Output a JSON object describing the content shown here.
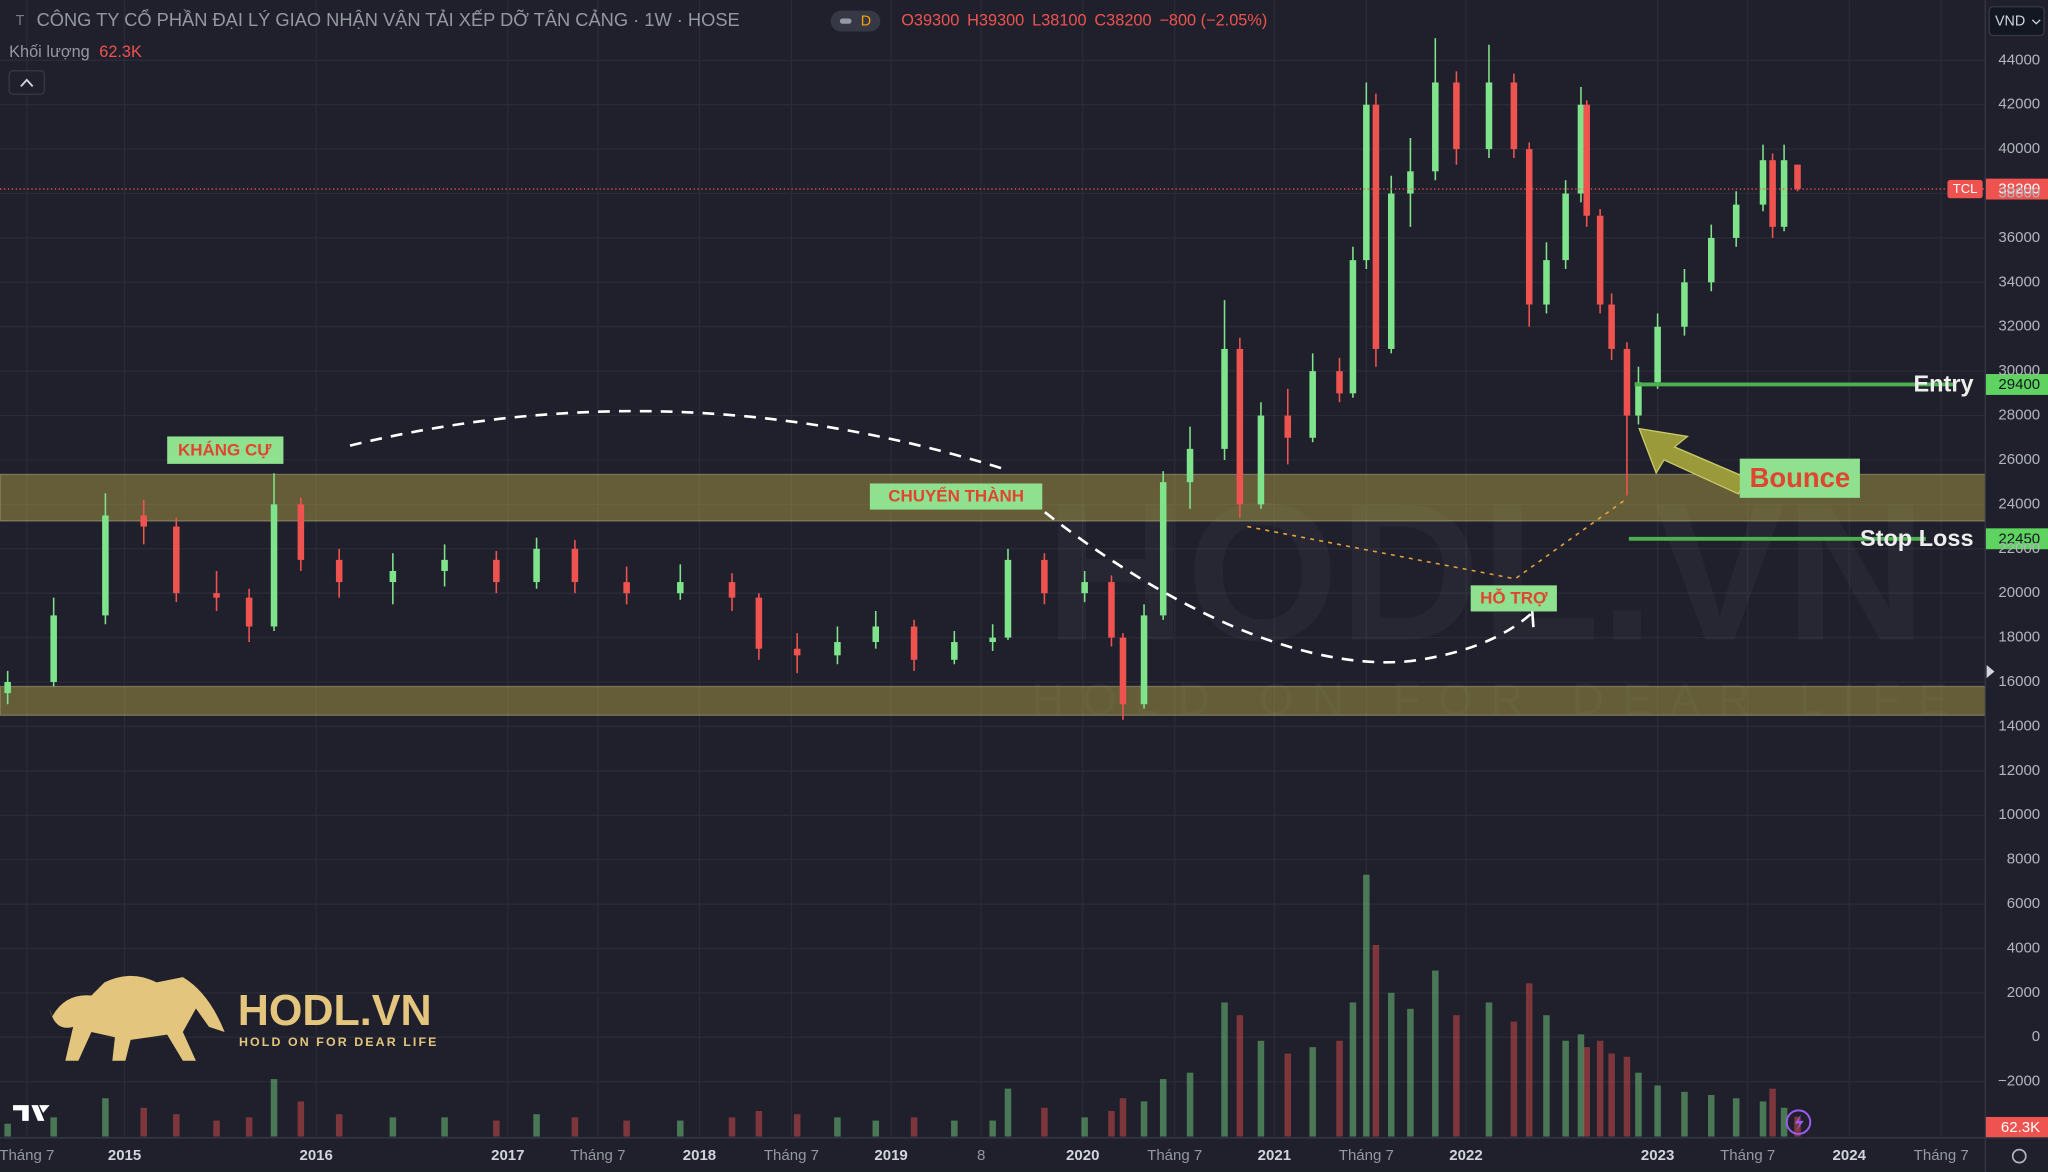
{
  "header": {
    "symbol_icon": "T",
    "title": "CÔNG TY CỔ PHẦN ĐẠI LÝ GIAO NHẬN VẬN TẢI XẾP DỠ TÂN CẢNG · 1W · HOSE",
    "badge": "D",
    "ohlc": [
      "O39300",
      "H39300",
      "L38100",
      "C38200",
      "−800 (−2.05%)"
    ],
    "volume_name": "Khối lượng",
    "volume_value": "62.3K",
    "currency": "VND"
  },
  "chart_data": {
    "type": "candlestick",
    "xlim": [
      2014.35,
      2024.71
    ],
    "ylim": [
      -4470,
      46706
    ],
    "vlim": [
      0,
      900
    ],
    "grid": true,
    "up_color": "#7ee38a",
    "down_color": "#ef5350",
    "xticks": [
      {
        "value": 2014.49,
        "label": "Tháng 7"
      },
      2015,
      2016,
      2017,
      {
        "value": 2017.47,
        "label": "Tháng 7"
      },
      2018,
      {
        "value": 2018.48,
        "label": "Tháng 7"
      },
      2019,
      {
        "value": 2019.47,
        "label": "8"
      },
      2020,
      {
        "value": 2020.48,
        "label": "Tháng 7"
      },
      2021,
      {
        "value": 2021.48,
        "label": "Tháng 7"
      },
      2022,
      2023,
      {
        "value": 2023.47,
        "label": "Tháng 7"
      },
      2024,
      {
        "value": 2024.48,
        "label": "Tháng 7"
      }
    ],
    "yticks": [
      {
        "value": -2000,
        "label": "−2000"
      },
      0,
      2000,
      4000,
      6000,
      8000,
      10000,
      12000,
      14000,
      16000,
      18000,
      20000,
      22000,
      24000,
      26000,
      28000,
      30000,
      32000,
      34000,
      36000,
      38000,
      40000,
      42000,
      44000
    ],
    "candles": [
      {
        "x": 2014.39,
        "open": 15500,
        "high": 16500,
        "low": 15000,
        "close": 16000,
        "volume": 40
      },
      {
        "x": 2014.63,
        "open": 16000,
        "high": 19800,
        "low": 15800,
        "close": 19000,
        "volume": 60
      },
      {
        "x": 2014.9,
        "open": 19000,
        "high": 24500,
        "low": 18600,
        "close": 23500,
        "volume": 120
      },
      {
        "x": 2015.1,
        "open": 23500,
        "high": 24200,
        "low": 22200,
        "close": 23000,
        "volume": 90
      },
      {
        "x": 2015.27,
        "open": 23000,
        "high": 23400,
        "low": 19600,
        "close": 20000,
        "volume": 70
      },
      {
        "x": 2015.48,
        "open": 20000,
        "high": 21000,
        "low": 19200,
        "close": 19800,
        "volume": 50
      },
      {
        "x": 2015.65,
        "open": 19800,
        "high": 20200,
        "low": 17800,
        "close": 18500,
        "volume": 60
      },
      {
        "x": 2015.78,
        "open": 18500,
        "high": 25400,
        "low": 18300,
        "close": 24000,
        "volume": 180
      },
      {
        "x": 2015.92,
        "open": 24000,
        "high": 24300,
        "low": 21000,
        "close": 21500,
        "volume": 110
      },
      {
        "x": 2016.12,
        "open": 21500,
        "high": 22000,
        "low": 19800,
        "close": 20500,
        "volume": 70
      },
      {
        "x": 2016.4,
        "open": 20500,
        "high": 21800,
        "low": 19500,
        "close": 21000,
        "volume": 60
      },
      {
        "x": 2016.67,
        "open": 21000,
        "high": 22200,
        "low": 20300,
        "close": 21500,
        "volume": 60
      },
      {
        "x": 2016.94,
        "open": 21500,
        "high": 21900,
        "low": 20000,
        "close": 20500,
        "volume": 50
      },
      {
        "x": 2017.15,
        "open": 20500,
        "high": 22500,
        "low": 20200,
        "close": 22000,
        "volume": 70
      },
      {
        "x": 2017.35,
        "open": 22000,
        "high": 22400,
        "low": 20000,
        "close": 20500,
        "volume": 60
      },
      {
        "x": 2017.62,
        "open": 20500,
        "high": 21200,
        "low": 19500,
        "close": 20000,
        "volume": 50
      },
      {
        "x": 2017.9,
        "open": 20000,
        "high": 21300,
        "low": 19700,
        "close": 20500,
        "volume": 50
      },
      {
        "x": 2018.17,
        "open": 20500,
        "high": 20900,
        "low": 19200,
        "close": 19800,
        "volume": 60
      },
      {
        "x": 2018.31,
        "open": 19800,
        "high": 20000,
        "low": 17000,
        "close": 17500,
        "volume": 80
      },
      {
        "x": 2018.51,
        "open": 17500,
        "high": 18200,
        "low": 16400,
        "close": 17200,
        "volume": 70
      },
      {
        "x": 2018.72,
        "open": 17200,
        "high": 18500,
        "low": 16800,
        "close": 17800,
        "volume": 60
      },
      {
        "x": 2018.92,
        "open": 17800,
        "high": 19200,
        "low": 17500,
        "close": 18500,
        "volume": 50
      },
      {
        "x": 2019.12,
        "open": 18500,
        "high": 18800,
        "low": 16500,
        "close": 17000,
        "volume": 60
      },
      {
        "x": 2019.33,
        "open": 17000,
        "high": 18300,
        "low": 16800,
        "close": 17800,
        "volume": 50
      },
      {
        "x": 2019.53,
        "open": 17800,
        "high": 18600,
        "low": 17400,
        "close": 18000,
        "volume": 50
      },
      {
        "x": 2019.61,
        "open": 18000,
        "high": 22000,
        "low": 17900,
        "close": 21500,
        "volume": 150
      },
      {
        "x": 2019.8,
        "open": 21500,
        "high": 21800,
        "low": 19500,
        "close": 20000,
        "volume": 90
      },
      {
        "x": 2020.01,
        "open": 20000,
        "high": 21000,
        "low": 19600,
        "close": 20500,
        "volume": 60
      },
      {
        "x": 2020.15,
        "open": 20500,
        "high": 20800,
        "low": 17600,
        "close": 18000,
        "volume": 80
      },
      {
        "x": 2020.21,
        "open": 18000,
        "high": 18200,
        "low": 14300,
        "close": 15000,
        "volume": 120
      },
      {
        "x": 2020.32,
        "open": 15000,
        "high": 19500,
        "low": 14800,
        "close": 19000,
        "volume": 110
      },
      {
        "x": 2020.42,
        "open": 19000,
        "high": 25500,
        "low": 18800,
        "close": 25000,
        "volume": 180
      },
      {
        "x": 2020.56,
        "open": 25000,
        "high": 27500,
        "low": 23800,
        "close": 26500,
        "volume": 200
      },
      {
        "x": 2020.74,
        "open": 26500,
        "high": 33200,
        "low": 26000,
        "close": 31000,
        "volume": 420
      },
      {
        "x": 2020.82,
        "open": 31000,
        "high": 31500,
        "low": 23400,
        "close": 24000,
        "volume": 380
      },
      {
        "x": 2020.93,
        "open": 24000,
        "high": 28600,
        "low": 23800,
        "close": 28000,
        "volume": 300
      },
      {
        "x": 2021.07,
        "open": 28000,
        "high": 29200,
        "low": 25800,
        "close": 27000,
        "volume": 260
      },
      {
        "x": 2021.2,
        "open": 27000,
        "high": 30800,
        "low": 26800,
        "close": 30000,
        "volume": 280
      },
      {
        "x": 2021.34,
        "open": 30000,
        "high": 30600,
        "low": 28600,
        "close": 29000,
        "volume": 300
      },
      {
        "x": 2021.41,
        "open": 29000,
        "high": 35600,
        "low": 28800,
        "close": 35000,
        "volume": 420
      },
      {
        "x": 2021.48,
        "open": 35000,
        "high": 43000,
        "low": 34600,
        "close": 42000,
        "volume": 820
      },
      {
        "x": 2021.53,
        "open": 42000,
        "high": 42500,
        "low": 30200,
        "close": 31000,
        "volume": 600
      },
      {
        "x": 2021.61,
        "open": 31000,
        "high": 38800,
        "low": 30800,
        "close": 38000,
        "volume": 450
      },
      {
        "x": 2021.71,
        "open": 38000,
        "high": 40500,
        "low": 36500,
        "close": 39000,
        "volume": 400
      },
      {
        "x": 2021.84,
        "open": 39000,
        "high": 45000,
        "low": 38600,
        "close": 43000,
        "volume": 520
      },
      {
        "x": 2021.95,
        "open": 43000,
        "high": 43500,
        "low": 39300,
        "close": 40000,
        "volume": 380
      },
      {
        "x": 2022.12,
        "open": 40000,
        "high": 44700,
        "low": 39600,
        "close": 43000,
        "volume": 420
      },
      {
        "x": 2022.25,
        "open": 43000,
        "high": 43400,
        "low": 39600,
        "close": 40000,
        "volume": 360
      },
      {
        "x": 2022.33,
        "open": 40000,
        "high": 40300,
        "low": 32000,
        "close": 33000,
        "volume": 480
      },
      {
        "x": 2022.42,
        "open": 33000,
        "high": 35800,
        "low": 32600,
        "close": 35000,
        "volume": 380
      },
      {
        "x": 2022.52,
        "open": 35000,
        "high": 38600,
        "low": 34600,
        "close": 38000,
        "volume": 300
      },
      {
        "x": 2022.6,
        "open": 38000,
        "high": 42800,
        "low": 37600,
        "close": 42000,
        "volume": 320
      },
      {
        "x": 2022.63,
        "open": 42000,
        "high": 42200,
        "low": 36500,
        "close": 37000,
        "volume": 280
      },
      {
        "x": 2022.7,
        "open": 37000,
        "high": 37300,
        "low": 32600,
        "close": 33000,
        "volume": 300
      },
      {
        "x": 2022.76,
        "open": 33000,
        "high": 33500,
        "low": 30500,
        "close": 31000,
        "volume": 260
      },
      {
        "x": 2022.84,
        "open": 31000,
        "high": 31300,
        "low": 24400,
        "close": 28000,
        "volume": 250
      },
      {
        "x": 2022.9,
        "open": 28000,
        "high": 30200,
        "low": 27600,
        "close": 29500,
        "volume": 200
      },
      {
        "x": 2023.0,
        "open": 29500,
        "high": 32600,
        "low": 29200,
        "close": 32000,
        "volume": 160
      },
      {
        "x": 2023.14,
        "open": 32000,
        "high": 34600,
        "low": 31600,
        "close": 34000,
        "volume": 140
      },
      {
        "x": 2023.28,
        "open": 34000,
        "high": 36600,
        "low": 33600,
        "close": 36000,
        "volume": 130
      },
      {
        "x": 2023.41,
        "open": 36000,
        "high": 38100,
        "low": 35600,
        "close": 37500,
        "volume": 120
      },
      {
        "x": 2023.55,
        "open": 37500,
        "high": 40200,
        "low": 37200,
        "close": 39500,
        "volume": 110
      },
      {
        "x": 2023.6,
        "open": 39500,
        "high": 39800,
        "low": 36000,
        "close": 36500,
        "volume": 150
      },
      {
        "x": 2023.66,
        "open": 36500,
        "high": 40200,
        "low": 36300,
        "close": 39500,
        "volume": 90
      },
      {
        "x": 2023.73,
        "open": 39300,
        "high": 39300,
        "low": 38100,
        "close": 38200,
        "volume": 62.3
      }
    ],
    "zones": [
      {
        "from": 23250,
        "to": 25350
      },
      {
        "from": 14500,
        "to": 15800
      }
    ],
    "last_price": {
      "symbol": "TCL",
      "value": 38200
    },
    "last_volume_label": "62.3K",
    "entry": {
      "label": "Entry",
      "value": 29400,
      "from": 2022.88,
      "to": 2024.55
    },
    "stop_loss": {
      "label": "Stop Loss",
      "value": 22450,
      "from": 2022.85,
      "to": 2024.4
    },
    "annotations": {
      "resistance": "KHÁNG CỰ",
      "flip": "CHUYỂN THÀNH",
      "support": "HỖ TRỢ",
      "bounce": "Bounce"
    }
  },
  "watermark": {
    "name": "HODL.VN",
    "slogan": "HOLD ON FOR DEAR LIFE"
  },
  "logo": {
    "name": "HODL.VN",
    "slogan": "HOLD ON FOR DEAR LIFE"
  }
}
